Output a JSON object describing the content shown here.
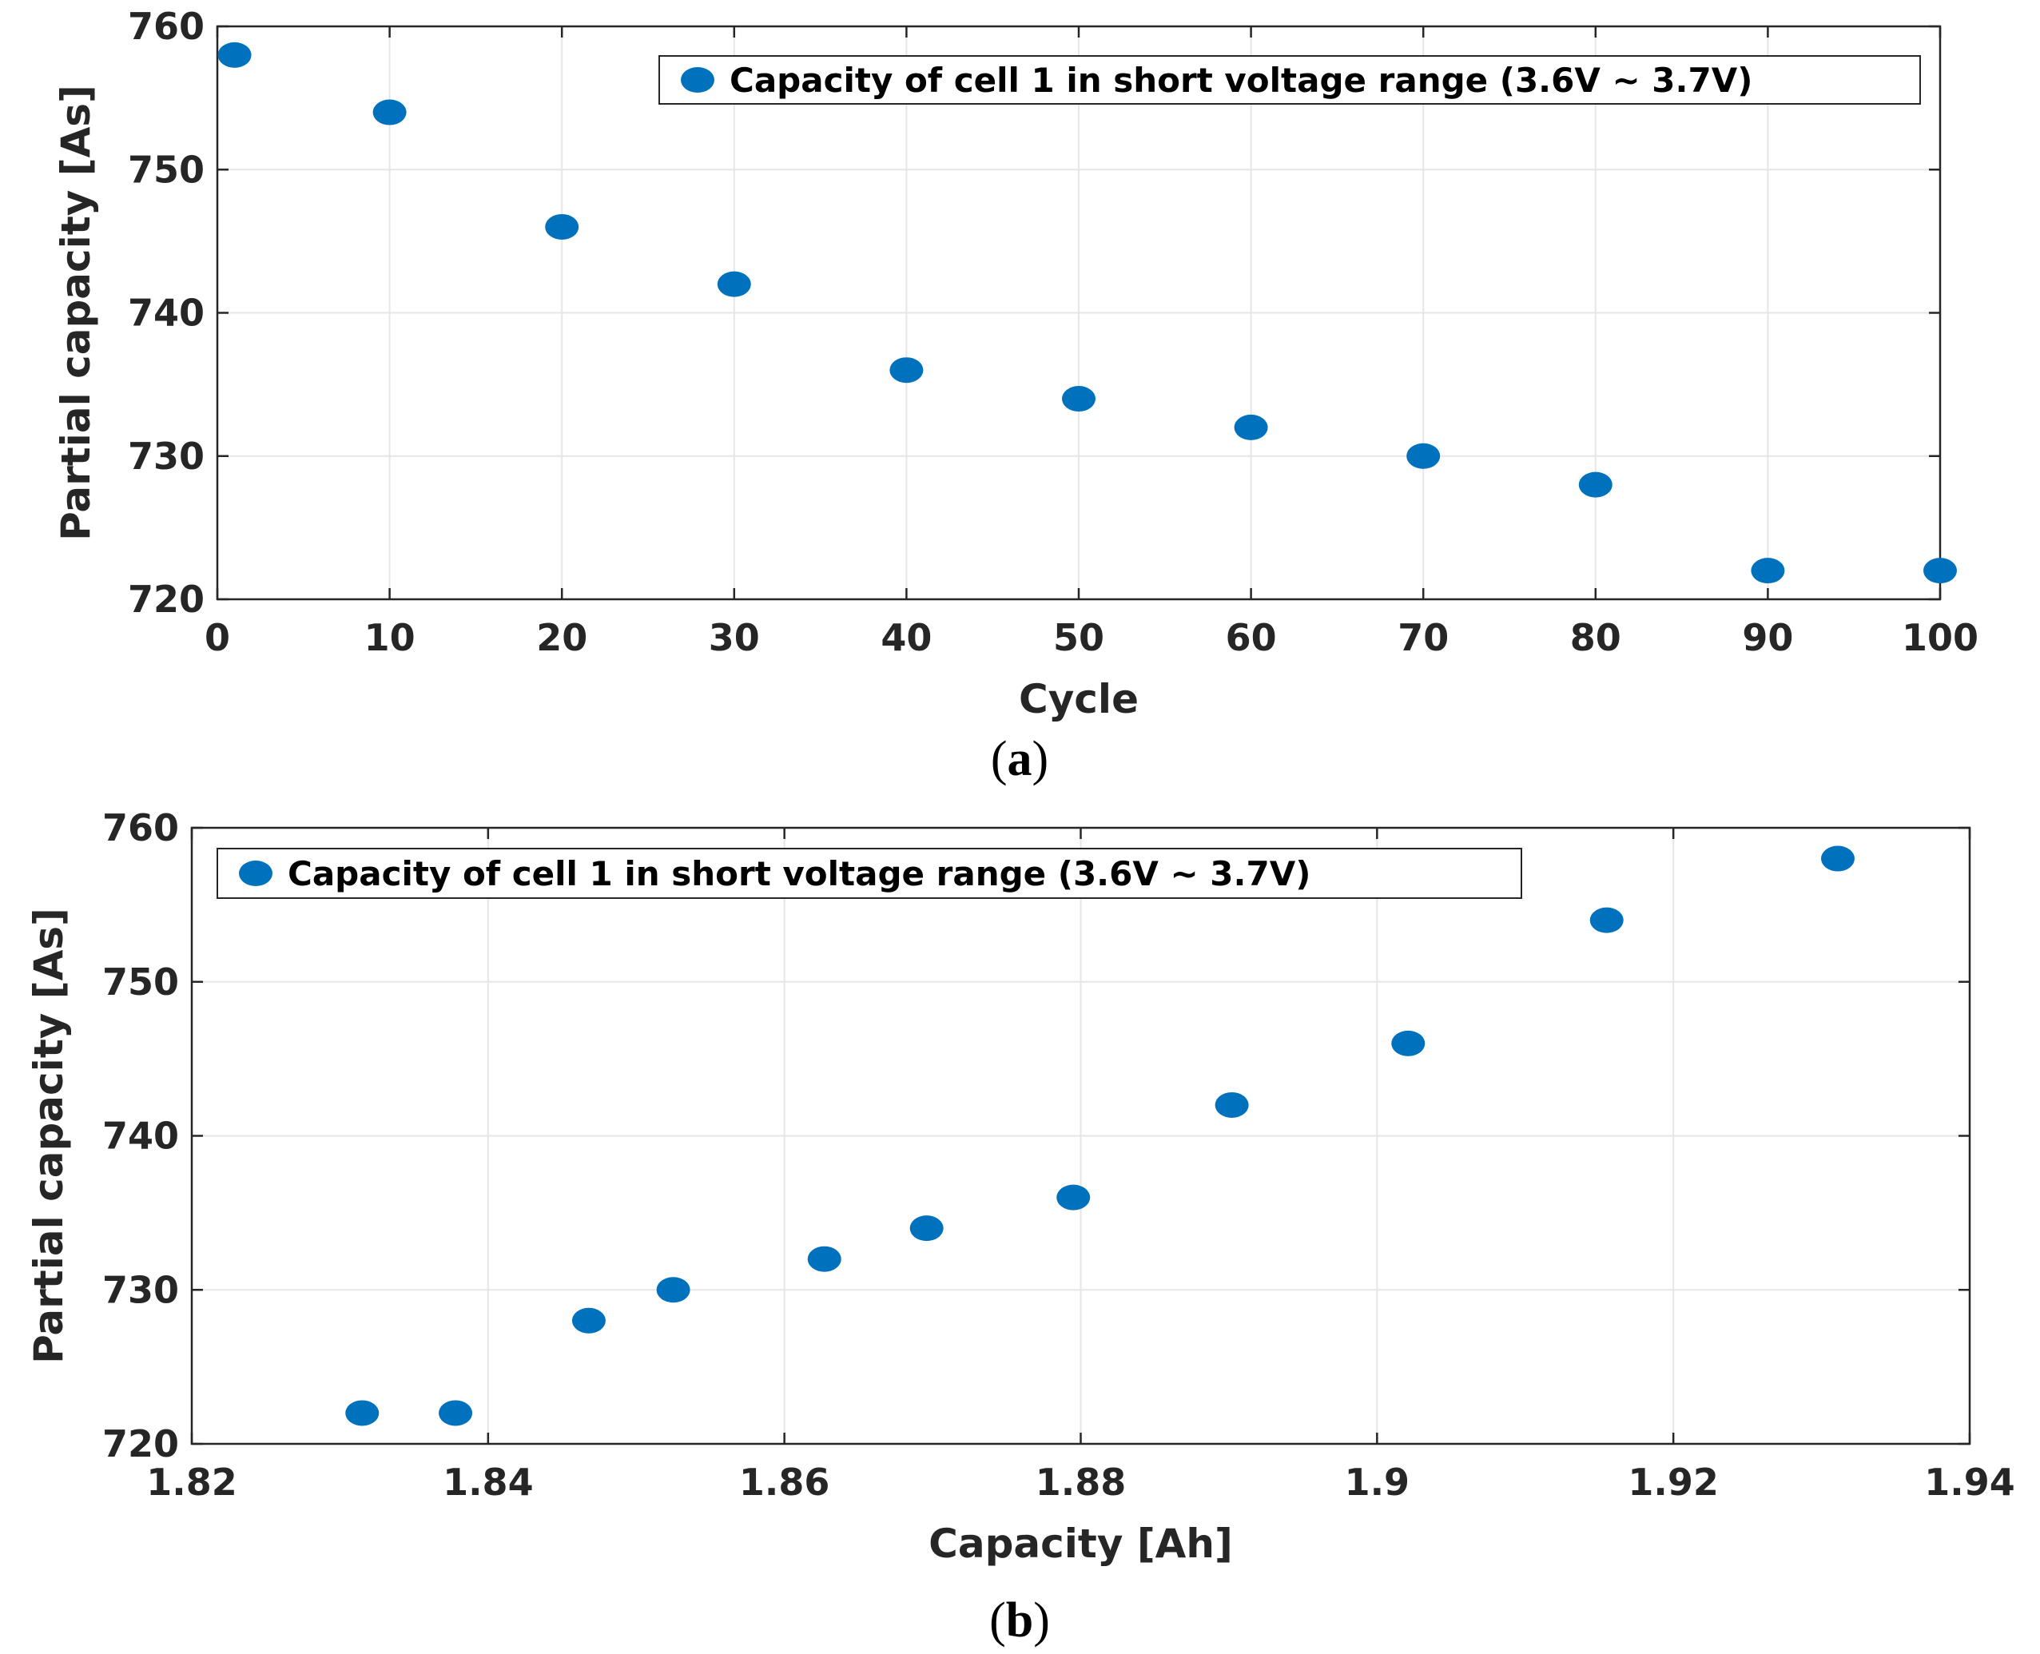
{
  "colors": {
    "marker": "#0072BD",
    "grid": "#e6e6e6",
    "axis": "#262626"
  },
  "captions": [
    {
      "open": "(",
      "letter": "a",
      "close": ")"
    },
    {
      "open": "(",
      "letter": "b",
      "close": ")"
    }
  ],
  "chart_data": [
    {
      "type": "scatter",
      "xlabel": "Cycle",
      "ylabel": "Partial capacity [As]",
      "xlim": [
        0,
        100
      ],
      "ylim": [
        720,
        760
      ],
      "xticks": [
        0,
        10,
        20,
        30,
        40,
        50,
        60,
        70,
        80,
        90,
        100
      ],
      "xtick_labels": [
        "0",
        "10",
        "20",
        "30",
        "40",
        "50",
        "60",
        "70",
        "80",
        "90",
        "100"
      ],
      "yticks": [
        720,
        730,
        740,
        750,
        760
      ],
      "ytick_labels": [
        "720",
        "730",
        "740",
        "750",
        "760"
      ],
      "grid": true,
      "legend_position": "top-right",
      "series": [
        {
          "name": "Capacity of cell 1 in short voltage range (3.6V ~ 3.7V)",
          "x": [
            1,
            10,
            20,
            30,
            40,
            50,
            60,
            70,
            80,
            90,
            100
          ],
          "y": [
            758,
            754,
            746,
            742,
            736,
            734,
            732,
            730,
            728,
            722,
            722
          ]
        }
      ]
    },
    {
      "type": "scatter",
      "xlabel": "Capacity [Ah]",
      "ylabel": "Partial capacity [As]",
      "xlim": [
        1.82,
        1.94
      ],
      "ylim": [
        720,
        760
      ],
      "xticks": [
        1.82,
        1.84,
        1.86,
        1.88,
        1.9,
        1.92,
        1.94
      ],
      "xtick_labels": [
        "1.82",
        "1.84",
        "1.86",
        "1.88",
        "1.9",
        "1.92",
        "1.94"
      ],
      "yticks": [
        720,
        730,
        740,
        750,
        760
      ],
      "ytick_labels": [
        "720",
        "730",
        "740",
        "750",
        "760"
      ],
      "grid": true,
      "legend_position": "top-left",
      "series": [
        {
          "name": "Capacity of cell 1 in short voltage range (3.6V ~ 3.7V)",
          "x": [
            1.8315,
            1.8378,
            1.8468,
            1.8525,
            1.8627,
            1.8696,
            1.8795,
            1.8902,
            1.9021,
            1.9155,
            1.9311
          ],
          "y": [
            722,
            722,
            728,
            730,
            732,
            734,
            736,
            742,
            746,
            754,
            758
          ]
        }
      ]
    }
  ]
}
